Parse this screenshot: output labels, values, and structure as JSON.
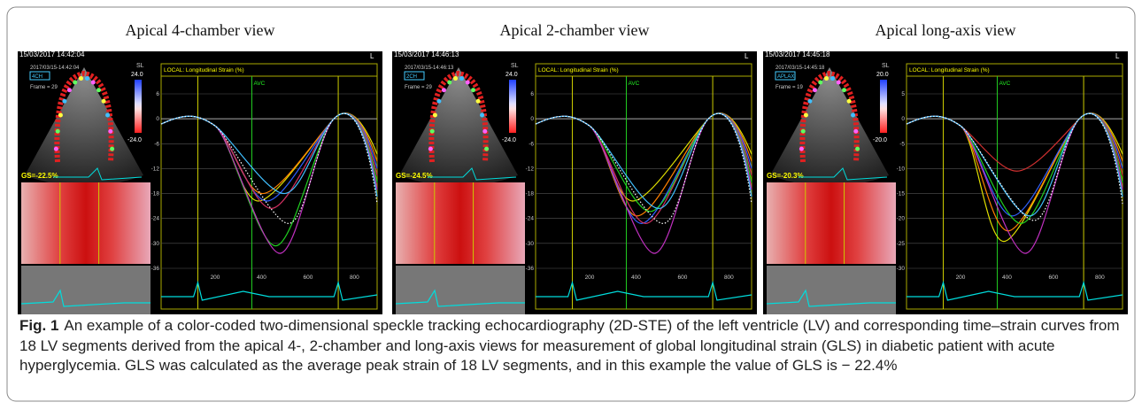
{
  "panels": [
    {
      "title": "Apical 4-chamber view",
      "timestamp": "15/03/2017 14:42:04",
      "subtimestamp": "2017/03/15-14:42:04",
      "view_tag": "4CH",
      "frame": "Frame = 29",
      "scale_label": "SL",
      "scale_top": "24.0",
      "scale_bottom": "-24.0",
      "gs": "GS=-22.5%",
      "corner": "L",
      "graph_title": "LOCAL: Longitudinal Strain (%)",
      "avc": "AVC",
      "yticks": [
        "6",
        "0",
        "-6",
        "-12",
        "-18",
        "-24",
        "-30",
        "-36"
      ],
      "xticks": [
        "200",
        "400",
        "600",
        "800"
      ]
    },
    {
      "title": "Apical 2-chamber view",
      "timestamp": "15/03/2017 14:46:13",
      "subtimestamp": "2017/03/15-14:46:13",
      "view_tag": "2CH",
      "frame": "Frame = 29",
      "scale_label": "SL",
      "scale_top": "24.0",
      "scale_bottom": "-24.0",
      "gs": "GS=-24.5%",
      "corner": "L",
      "graph_title": "LOCAL: Longitudinal Strain (%)",
      "avc": "AVC",
      "yticks": [
        "6",
        "0",
        "-6",
        "-12",
        "-18",
        "-24",
        "-30",
        "-36"
      ],
      "xticks": [
        "200",
        "400",
        "600",
        "800"
      ]
    },
    {
      "title": "Apical long-axis view",
      "timestamp": "15/03/2017 14:45:18",
      "subtimestamp": "2017/03/15-14:45:18",
      "view_tag": "APLAX",
      "frame": "Frame = 19",
      "scale_label": "SL",
      "scale_top": "20.0",
      "scale_bottom": "-20.0",
      "gs": "GS=-20.3%",
      "corner": "L",
      "graph_title": "LOCAL: Longitudinal Strain (%)",
      "avc": "AVC",
      "yticks": [
        "5",
        "0",
        "-5",
        "-10",
        "-15",
        "-20",
        "-25",
        "-30"
      ],
      "xticks": [
        "200",
        "400",
        "600",
        "800"
      ]
    }
  ],
  "caption": {
    "label": "Fig. 1",
    "text": "An example of a color-coded two-dimensional speckle tracking echocardiography (2D-STE) of the left ventricle (LV) and corresponding time–strain curves from 18 LV segments derived from the apical 4-, 2-chamber and long-axis views for measurement of global longitudinal strain (GLS) in diabetic patient with acute hyperglycemia. GLS was calculated as the average peak strain of 18 LV segments, and in this example the value of GLS is − 22.4%"
  }
}
